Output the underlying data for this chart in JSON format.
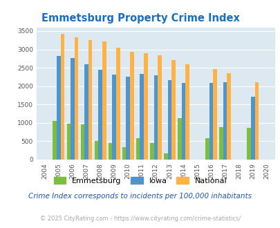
{
  "title": "Emmetsburg Property Crime Index",
  "years": [
    2004,
    2005,
    2006,
    2007,
    2008,
    2009,
    2010,
    2011,
    2012,
    2013,
    2014,
    2015,
    2016,
    2017,
    2018,
    2019,
    2020
  ],
  "emmetsburg": [
    0,
    1050,
    980,
    960,
    500,
    450,
    330,
    590,
    450,
    175,
    1120,
    0,
    580,
    880,
    0,
    860,
    0
  ],
  "iowa": [
    0,
    2820,
    2770,
    2600,
    2450,
    2320,
    2250,
    2330,
    2290,
    2170,
    2090,
    0,
    2090,
    2110,
    0,
    1720,
    0
  ],
  "national": [
    0,
    3420,
    3330,
    3250,
    3210,
    3040,
    2940,
    2890,
    2840,
    2710,
    2590,
    0,
    2470,
    2360,
    0,
    2100,
    0
  ],
  "colors": {
    "emmetsburg": "#7cbf3f",
    "iowa": "#4f94cd",
    "national": "#ffb347"
  },
  "ylabel_ticks": [
    0,
    500,
    1000,
    1500,
    2000,
    2500,
    3000,
    3500
  ],
  "ylim": [
    0,
    3600
  ],
  "background_color": "#dce9f0",
  "fig_background": "#ffffff",
  "subtitle": "Crime Index corresponds to incidents per 100,000 inhabitants",
  "footer": "© 2025 CityRating.com - https://www.cityrating.com/crime-statistics/",
  "title_color": "#1a6ebd",
  "subtitle_color": "#2255aa",
  "footer_color": "#aaaaaa",
  "legend_labels": [
    "Emmetsburg",
    "Iowa",
    "National"
  ],
  "bar_width": 0.28
}
